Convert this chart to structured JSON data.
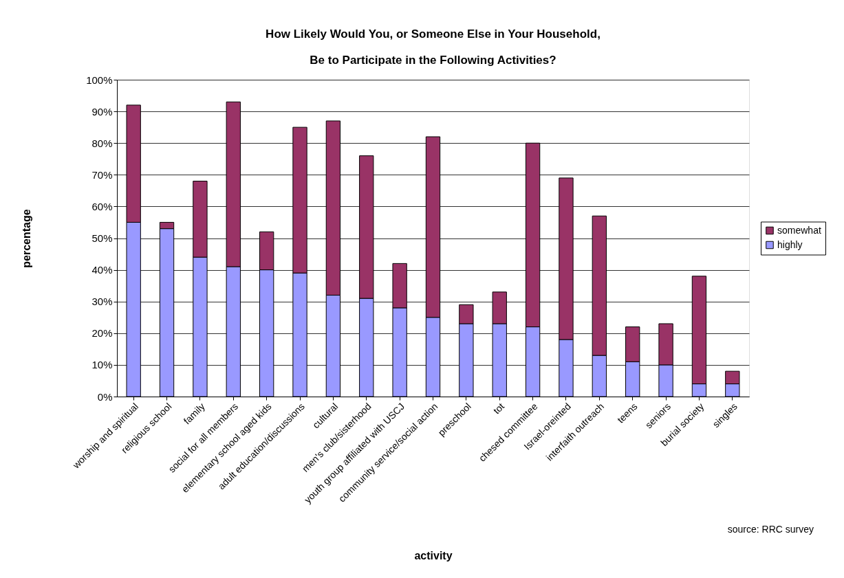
{
  "chart_data": {
    "type": "bar",
    "title": "How Likely Would You, or Someone Else in Your Household, Be to Participate in the Following Activities?",
    "xlabel": "activity",
    "ylabel": "percentage",
    "annotations": [
      "source: RRC survey"
    ],
    "categories": [
      "worship and spiritual",
      "religious school",
      "family",
      "social for all members",
      "elementary school aged kids",
      "adult education/discussions",
      "cultural",
      "men's club/sisterhood",
      "youth group affiliated with USCJ",
      "community service/social action",
      "preschool",
      "tot",
      "chesed committee",
      "Israel-oreinted",
      "interfaith outreach",
      "teens",
      "seniors",
      "burial society",
      "singles"
    ],
    "series": [
      {
        "name": "highly",
        "color": "#9999ff",
        "values": [
          55,
          53,
          44,
          41,
          40,
          39,
          32,
          31,
          28,
          25,
          23,
          23,
          22,
          18,
          13,
          11,
          10,
          4,
          4
        ]
      },
      {
        "name": "somewhat",
        "color": "#993366",
        "values": [
          37,
          2,
          24,
          52,
          12,
          46,
          55,
          45,
          14,
          57,
          6,
          10,
          58,
          51,
          44,
          11,
          13,
          34,
          4
        ]
      }
    ],
    "stacked": true,
    "ylim": [
      0,
      100
    ],
    "yticks": [
      {
        "value": 0,
        "label": "0%"
      },
      {
        "value": 10,
        "label": "10%"
      },
      {
        "value": 20,
        "label": "20%"
      },
      {
        "value": 30,
        "label": "30%"
      },
      {
        "value": 40,
        "label": "40%"
      },
      {
        "value": 50,
        "label": "50%"
      },
      {
        "value": 60,
        "label": "60%"
      },
      {
        "value": 70,
        "label": "70%"
      },
      {
        "value": 80,
        "label": "80%"
      },
      {
        "value": 90,
        "label": "90%"
      },
      {
        "value": 100,
        "label": "100%"
      }
    ],
    "grid": "y",
    "legend": "right"
  }
}
